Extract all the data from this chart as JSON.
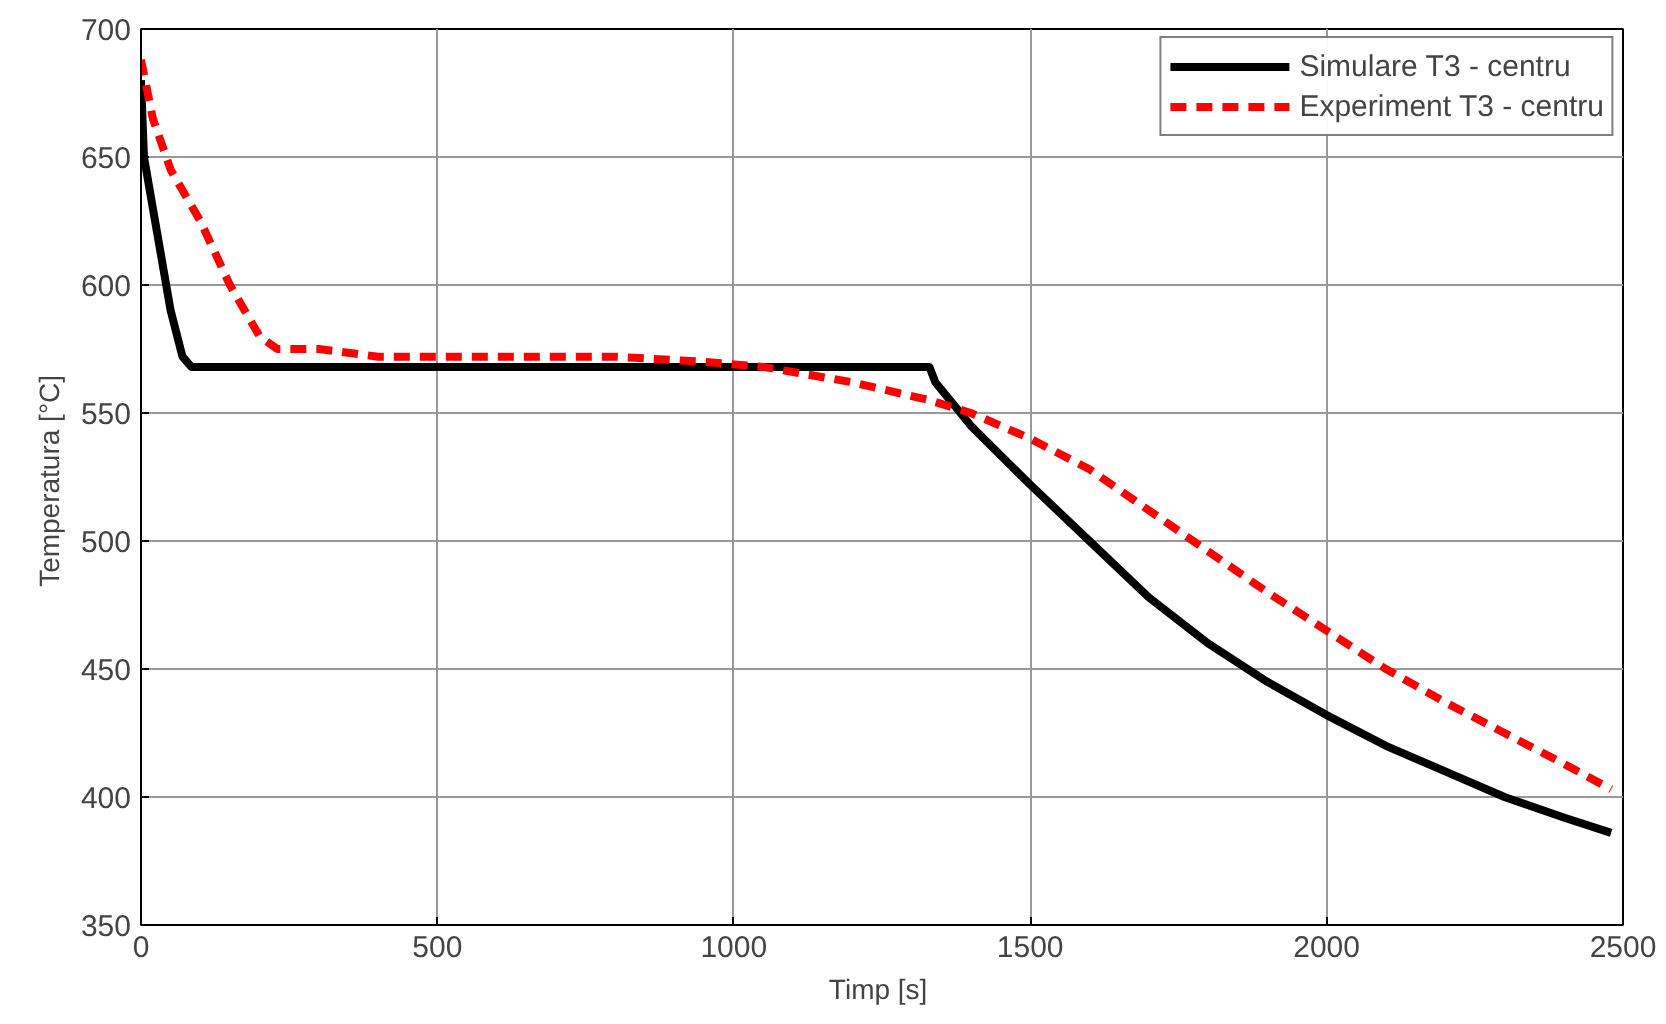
{
  "chart_data": {
    "type": "line",
    "xlabel": "Timp  [s]",
    "ylabel": "Temperatura  [°C]",
    "xlim": [
      0,
      2500
    ],
    "xticks": [
      0,
      500,
      1000,
      1500,
      2000,
      2500
    ],
    "ylim": [
      350,
      700
    ],
    "yticks": [
      350,
      400,
      450,
      500,
      550,
      600,
      650,
      700
    ],
    "grid": true,
    "legend": "top right",
    "series": [
      {
        "name": "Simulare T3 - centru",
        "color": "#000000",
        "line_style": "solid",
        "x": [
          0,
          5,
          20,
          50,
          70,
          85,
          1330,
          1340,
          1400,
          1500,
          1600,
          1700,
          1800,
          1900,
          2000,
          2100,
          2200,
          2300,
          2400,
          2480
        ],
        "values": [
          680,
          650,
          630,
          590,
          572,
          568,
          568,
          562,
          545,
          522,
          500,
          478,
          460,
          445,
          432,
          420,
          410,
          400,
          392,
          386
        ]
      },
      {
        "name": "Experiment T3 - centru",
        "color": "#ff0000",
        "line_style": "dashed",
        "x": [
          0,
          20,
          50,
          100,
          150,
          200,
          230,
          300,
          400,
          600,
          800,
          950,
          1050,
          1200,
          1330,
          1400,
          1500,
          1600,
          1700,
          1800,
          1900,
          2000,
          2100,
          2200,
          2300,
          2400,
          2480
        ],
        "values": [
          688,
          665,
          645,
          625,
          600,
          580,
          575,
          575,
          572,
          572,
          572,
          570,
          568,
          562,
          555,
          550,
          540,
          528,
          512,
          496,
          480,
          465,
          450,
          437,
          425,
          413,
          403
        ]
      }
    ]
  }
}
